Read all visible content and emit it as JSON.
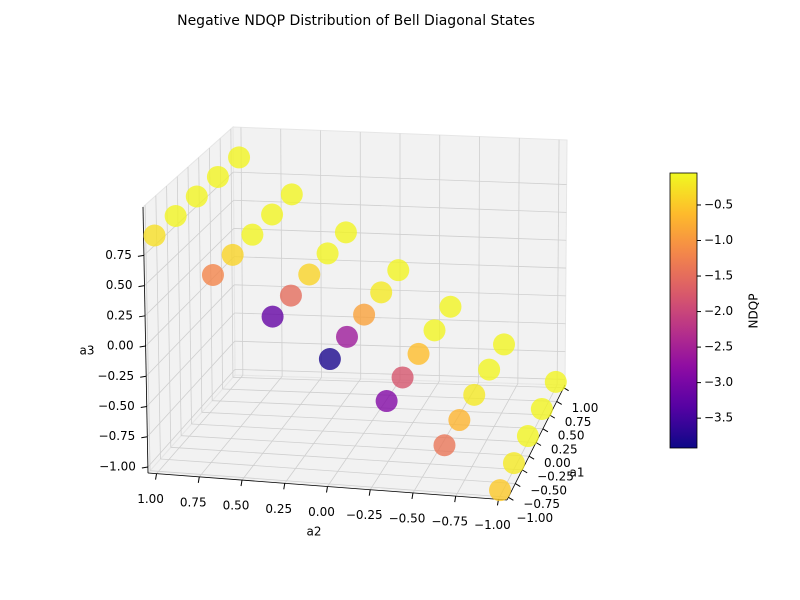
{
  "chart_data": {
    "type": "scatter3d",
    "title": "Negative NDQP Distribution of Bell Diagonal States",
    "xlabel": "a1",
    "ylabel": "a2",
    "zlabel": "a3",
    "colorbar_label": "NDQP",
    "colormap": "plasma",
    "grid": true,
    "xlim": [
      -1.05,
      1.05
    ],
    "ylim": [
      -1.05,
      1.05
    ],
    "zlim": [
      -1.05,
      1.15
    ],
    "clim": [
      -3.92,
      -0.05
    ],
    "xticks": [
      {
        "value": -1,
        "label": "−1.00"
      },
      {
        "value": -0.75,
        "label": "−0.75"
      },
      {
        "value": -0.5,
        "label": "−0.50"
      },
      {
        "value": -0.25,
        "label": "−0.25"
      },
      {
        "value": 0,
        "label": "0.00"
      },
      {
        "value": 0.25,
        "label": "0.25"
      },
      {
        "value": 0.5,
        "label": "0.50"
      },
      {
        "value": 0.75,
        "label": "0.75"
      },
      {
        "value": 1,
        "label": "1.00"
      }
    ],
    "yticks": [
      {
        "value": -1,
        "label": "−1.00"
      },
      {
        "value": -0.75,
        "label": "−0.75"
      },
      {
        "value": -0.5,
        "label": "−0.50"
      },
      {
        "value": -0.25,
        "label": "−0.25"
      },
      {
        "value": 0,
        "label": "0.00"
      },
      {
        "value": 0.25,
        "label": "0.25"
      },
      {
        "value": 0.5,
        "label": "0.50"
      },
      {
        "value": 0.75,
        "label": "0.75"
      },
      {
        "value": 1,
        "label": "1.00"
      }
    ],
    "zticks": [
      {
        "value": -1,
        "label": "−1.00"
      },
      {
        "value": -0.75,
        "label": "−0.75"
      },
      {
        "value": -0.5,
        "label": "−0.50"
      },
      {
        "value": -0.25,
        "label": "−0.25"
      },
      {
        "value": 0,
        "label": "0.00"
      },
      {
        "value": 0.25,
        "label": "0.25"
      },
      {
        "value": 0.5,
        "label": "0.50"
      },
      {
        "value": 0.75,
        "label": "0.75"
      }
    ],
    "cticks": [
      {
        "value": -3.5,
        "label": "−3.5"
      },
      {
        "value": -3,
        "label": "−3.0"
      },
      {
        "value": -2.5,
        "label": "−2.5"
      },
      {
        "value": -2,
        "label": "−2.0"
      },
      {
        "value": -1.5,
        "label": "−1.5"
      },
      {
        "value": -1,
        "label": "−1.0"
      },
      {
        "value": -0.5,
        "label": "−0.5"
      }
    ],
    "x": [
      -1,
      -0.5,
      0,
      0.5,
      1,
      -1,
      -0.5,
      0,
      0.5,
      1,
      -1,
      -0.5,
      0,
      0.5,
      1,
      -1,
      -0.5,
      0,
      0.5,
      1,
      -1,
      -0.5,
      0,
      0.5,
      1,
      -1,
      -0.5,
      0,
      0.5,
      1,
      -1,
      -0.5,
      0,
      0.5,
      1
    ],
    "y": [
      1,
      1,
      1,
      1,
      1,
      0.67,
      0.67,
      0.67,
      0.67,
      0.67,
      0.33,
      0.33,
      0.33,
      0.33,
      0.33,
      0,
      0,
      0,
      0,
      0,
      -0.33,
      -0.33,
      -0.33,
      -0.33,
      -0.33,
      -0.67,
      -0.67,
      -0.67,
      -0.67,
      -0.67,
      -1,
      -1,
      -1,
      -1,
      -1
    ],
    "z": [
      0.9,
      0.9,
      0.9,
      0.9,
      0.9,
      0.59,
      0.59,
      0.59,
      0.59,
      0.59,
      0.27,
      0.27,
      0.27,
      0.27,
      0.27,
      -0.05,
      -0.05,
      -0.05,
      -0.05,
      -0.05,
      -0.36,
      -0.36,
      -0.36,
      -0.36,
      -0.36,
      -0.68,
      -0.68,
      -0.68,
      -0.68,
      -0.68,
      -1,
      -1,
      -1,
      -1,
      -1
    ],
    "c": [
      -0.3,
      -0.1,
      -0.1,
      -0.1,
      -0.1,
      -1.2,
      -0.4,
      -0.1,
      -0.1,
      -0.1,
      -3.2,
      -1.5,
      -0.4,
      -0.1,
      -0.1,
      -3.8,
      -2.6,
      -0.9,
      -0.2,
      -0.1,
      -2.9,
      -1.8,
      -0.6,
      -0.1,
      -0.1,
      -1.4,
      -0.7,
      -0.2,
      -0.1,
      -0.1,
      -0.5,
      -0.2,
      -0.1,
      -0.1,
      -0.1
    ]
  }
}
